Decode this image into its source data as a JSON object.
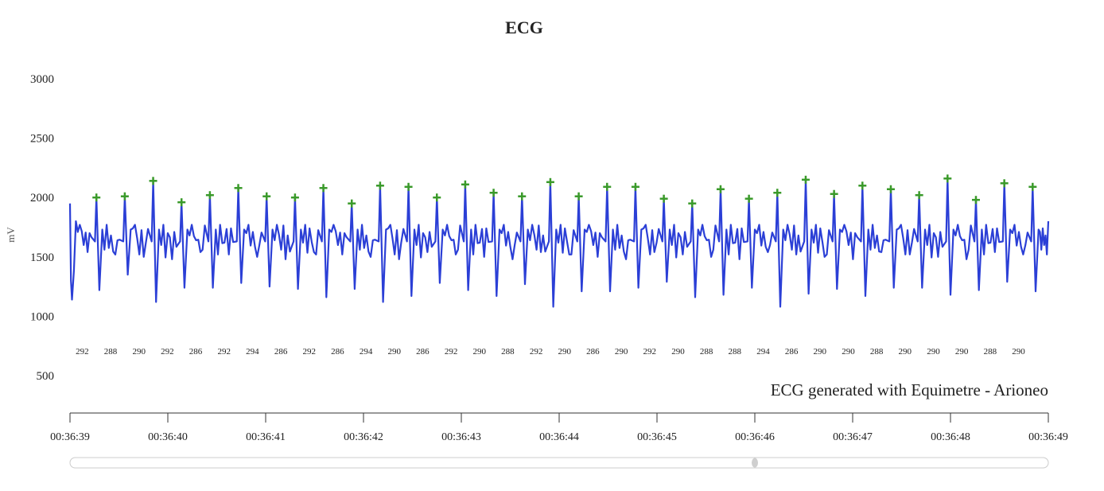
{
  "chart_data": {
    "type": "line",
    "title": "ECG",
    "ylabel": "mV",
    "xlabel": "",
    "ylim": [
      500,
      3000
    ],
    "yticks": [
      500,
      1000,
      1500,
      2000,
      2500,
      3000
    ],
    "xlim_seconds": [
      "00:36:39",
      "00:36:49"
    ],
    "xticks": [
      "00:36:39",
      "00:36:40",
      "00:36:41",
      "00:36:42",
      "00:36:43",
      "00:36:44",
      "00:36:45",
      "00:36:46",
      "00:36:47",
      "00:36:48",
      "00:36:49"
    ],
    "grid": false,
    "series": [
      {
        "color": "#2b3fd6",
        "peaks_time_s": [
          0.27,
          0.56,
          0.85,
          1.14,
          1.43,
          1.72,
          2.01,
          2.3,
          2.59,
          2.88,
          3.17,
          3.46,
          3.75,
          4.04,
          4.33,
          4.62,
          4.91,
          5.2,
          5.49,
          5.78,
          6.07,
          6.36,
          6.65,
          6.94,
          7.23,
          7.52,
          7.81,
          8.1,
          8.39,
          8.68,
          8.97,
          9.26,
          9.55,
          9.84
        ],
        "peaks_value": [
          2000,
          2010,
          2140,
          1960,
          2020,
          2080,
          2010,
          2000,
          2080,
          1950,
          2100,
          2090,
          2000,
          2110,
          2040,
          2010,
          2130,
          2010,
          2090,
          2090,
          1990,
          1950,
          2070,
          1990,
          2040,
          2150,
          2030,
          2100,
          2070,
          2020,
          2160,
          1980,
          2120,
          2090
        ],
        "troughs_value": [
          1220,
          1350,
          1120,
          1240,
          1240,
          1280,
          1250,
          1230,
          1160,
          1230,
          1120,
          1170,
          1280,
          1220,
          1170,
          1270,
          1080,
          1210,
          1210,
          1240,
          1290,
          1160,
          1180,
          1240,
          1080,
          1190,
          1230,
          1170,
          1240,
          1240,
          1180,
          1220,
          1290,
          1210
        ],
        "baseline": 1650
      }
    ],
    "peak_marker": {
      "symbol": "+",
      "color": "#3a9a2a"
    },
    "rr_intervals_ms": [
      "292",
      "288",
      "290",
      "292",
      "286",
      "292",
      "294",
      "286",
      "292",
      "286",
      "294",
      "290",
      "286",
      "292",
      "290",
      "288",
      "292",
      "290",
      "286",
      "290",
      "292",
      "290",
      "288",
      "288",
      "294",
      "286",
      "290",
      "290",
      "288",
      "290",
      "290",
      "290",
      "288",
      "290"
    ],
    "credit": "ECG generated with Equimetre - Arioneo",
    "navigator": {
      "handle_position_fraction": 0.7
    }
  }
}
